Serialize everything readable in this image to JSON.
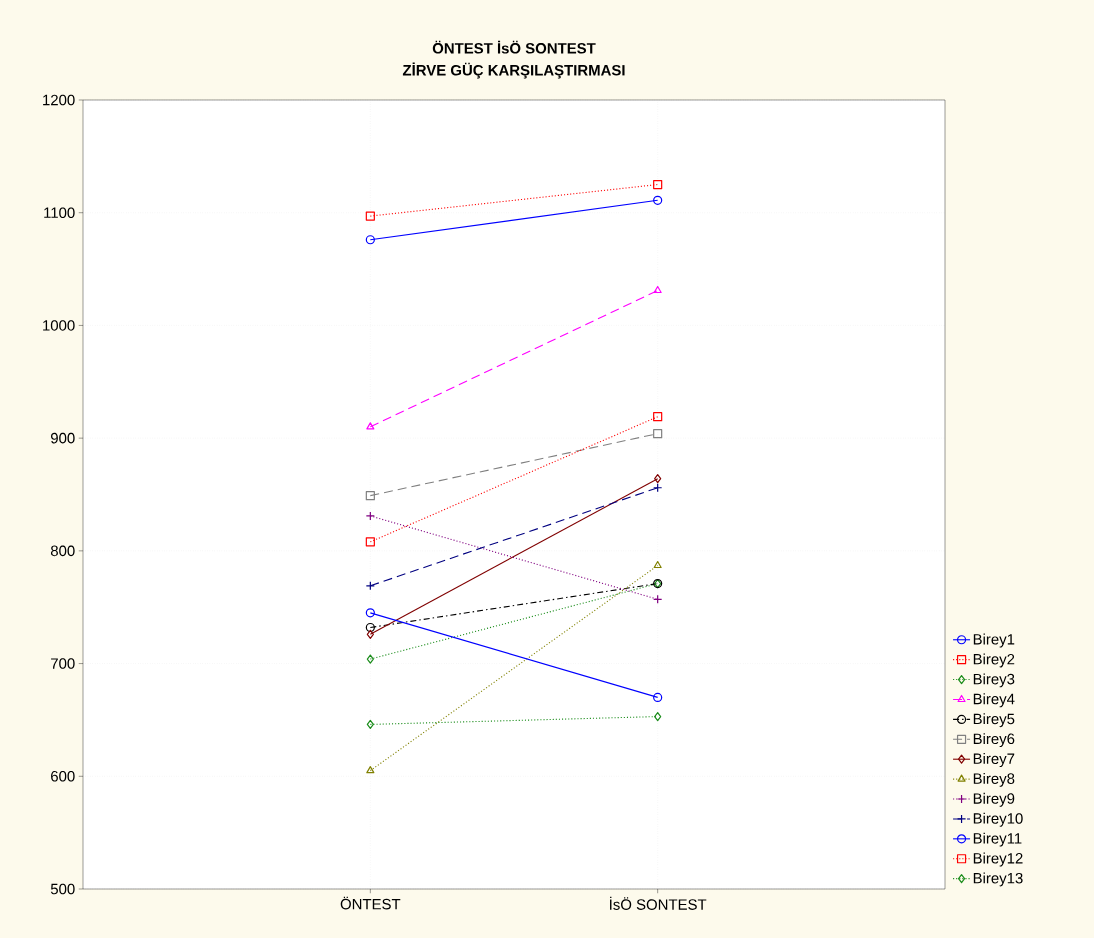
{
  "chart_data": {
    "type": "line",
    "title": "ÖNTEST İsÖ SONTEST",
    "subtitle": "ZİRVE GÜÇ KARŞILAŞTIRMASI",
    "categories": [
      "ÖNTEST",
      "İsÖ SONTEST"
    ],
    "ylim": [
      500,
      1200
    ],
    "yticks": [
      500,
      600,
      700,
      800,
      900,
      1000,
      1100,
      1200
    ],
    "grid": true,
    "legend": "right",
    "series": [
      {
        "name": "Birey1",
        "color": "#0000ff",
        "values": [
          1076,
          1111
        ],
        "marker": "circle",
        "line_style": "solid"
      },
      {
        "name": "Birey2",
        "color": "#ff0000",
        "values": [
          1097,
          1125
        ],
        "marker": "square",
        "line_style": "dotted"
      },
      {
        "name": "Birey3",
        "color": "#1a8c1a",
        "values": [
          704,
          771
        ],
        "marker": "diamond",
        "line_style": "dotted"
      },
      {
        "name": "Birey4",
        "color": "#ff00ff",
        "values": [
          910,
          1031
        ],
        "marker": "triangle",
        "line_style": "dashed"
      },
      {
        "name": "Birey5",
        "color": "#000000",
        "values": [
          732,
          771
        ],
        "marker": "circle",
        "line_style": "dashdot"
      },
      {
        "name": "Birey6",
        "color": "#808080",
        "values": [
          849,
          904
        ],
        "marker": "square",
        "line_style": "dashed"
      },
      {
        "name": "Birey7",
        "color": "#800000",
        "values": [
          726,
          864
        ],
        "marker": "diamond",
        "line_style": "solid"
      },
      {
        "name": "Birey8",
        "color": "#808000",
        "values": [
          605,
          787
        ],
        "marker": "triangle",
        "line_style": "dotted"
      },
      {
        "name": "Birey9",
        "color": "#800080",
        "values": [
          831,
          757
        ],
        "marker": "cross",
        "line_style": "dotted"
      },
      {
        "name": "Birey10",
        "color": "#000080",
        "values": [
          769,
          856
        ],
        "marker": "cross",
        "line_style": "dashed"
      },
      {
        "name": "Birey11",
        "color": "#0000ff",
        "values": [
          745,
          670
        ],
        "marker": "circle",
        "line_style": "solid"
      },
      {
        "name": "Birey12",
        "color": "#ff0000",
        "values": [
          808,
          919
        ],
        "marker": "square",
        "line_style": "dotted"
      },
      {
        "name": "Birey13",
        "color": "#1a8c1a",
        "values": [
          646,
          653
        ],
        "marker": "diamond",
        "line_style": "dotted"
      }
    ]
  }
}
